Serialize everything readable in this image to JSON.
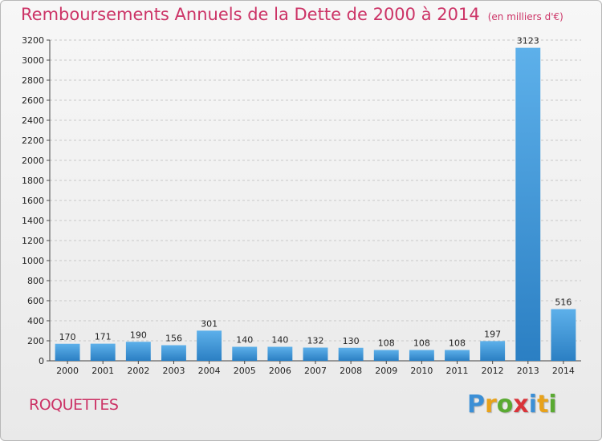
{
  "header": {
    "title": "Remboursements Annuels de la Dette de 2000 à 2014",
    "unit": "(en milliers d'€)"
  },
  "footer": {
    "commune": "ROQUETTES",
    "brand_letters": [
      {
        "ch": "P",
        "color": "#3b8fd6"
      },
      {
        "ch": "r",
        "color": "#e8a21a"
      },
      {
        "ch": "o",
        "color": "#5aaa32"
      },
      {
        "ch": "x",
        "color": "#d9343a"
      },
      {
        "ch": "i",
        "color": "#3b8fd6"
      },
      {
        "ch": "t",
        "color": "#e8a21a"
      },
      {
        "ch": "i",
        "color": "#5aaa32"
      }
    ]
  },
  "colors": {
    "title": "#cc3366",
    "bar_top": "#5db0ea",
    "bar_bottom": "#2b7fc3",
    "grid": "#c8c8c8",
    "axis": "#444444"
  },
  "chart_data": {
    "type": "bar",
    "title": "Remboursements Annuels de la Dette de 2000 à 2014",
    "xlabel": "",
    "ylabel": "",
    "categories": [
      "2000",
      "2001",
      "2002",
      "2003",
      "2004",
      "2005",
      "2006",
      "2007",
      "2008",
      "2009",
      "2010",
      "2011",
      "2012",
      "2013",
      "2014"
    ],
    "values": [
      170,
      171,
      190,
      156,
      301,
      140,
      140,
      132,
      130,
      108,
      108,
      108,
      197,
      3123,
      516
    ],
    "ylim": [
      0,
      3200
    ],
    "ytick_step": 200,
    "grid": "horizontal dashed",
    "data_labels": true
  }
}
